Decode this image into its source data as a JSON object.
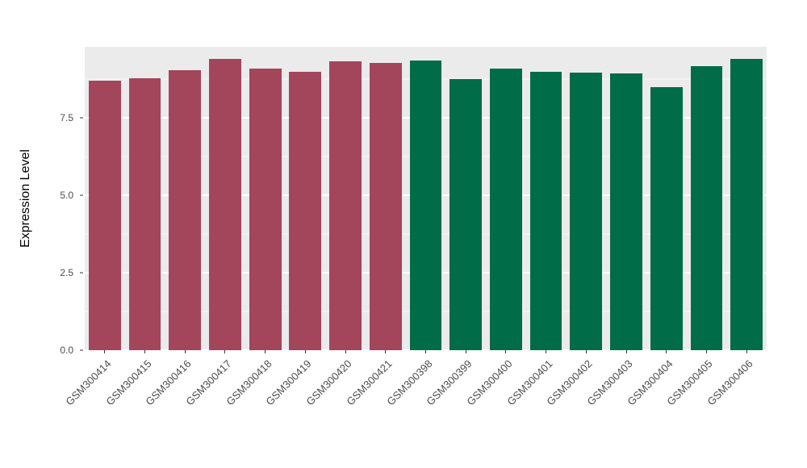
{
  "chart_data": {
    "type": "bar",
    "title": "",
    "xlabel": "",
    "ylabel": "Expression Level",
    "ylim": [
      0,
      9.8
    ],
    "yticks": [
      0,
      2.5,
      5,
      7.5
    ],
    "ytick_labels": [
      "0.0",
      "2.5",
      "5.0",
      "7.5"
    ],
    "minor_yticks": [
      1.25,
      3.75,
      6.25,
      8.75
    ],
    "categories": [
      "GSM300414",
      "GSM300415",
      "GSM300416",
      "GSM300417",
      "GSM300418",
      "GSM300419",
      "GSM300420",
      "GSM300421",
      "GSM300398",
      "GSM300399",
      "GSM300400",
      "GSM300401",
      "GSM300402",
      "GSM300403",
      "GSM300404",
      "GSM300405",
      "GSM300406"
    ],
    "values": [
      8.7,
      8.78,
      9.05,
      9.4,
      9.1,
      9.0,
      9.32,
      9.28,
      9.35,
      8.76,
      9.1,
      9.0,
      8.97,
      8.95,
      8.5,
      9.18,
      9.4
    ],
    "bar_colors": [
      "#A3455B",
      "#A3455B",
      "#A3455B",
      "#A3455B",
      "#A3455B",
      "#A3455B",
      "#A3455B",
      "#A3455B",
      "#006C48",
      "#006C48",
      "#006C48",
      "#006C48",
      "#006C48",
      "#006C48",
      "#006C48",
      "#006C48",
      "#006C48"
    ],
    "legend": "none",
    "grid": "on",
    "colors": {
      "group_left": "#A3455B",
      "group_right": "#006C48",
      "panel_background": "#EBEBEB",
      "gridline": "#FFFFFF",
      "tick_text": "#4D4D4D",
      "axis_title_text": "#000000"
    }
  }
}
